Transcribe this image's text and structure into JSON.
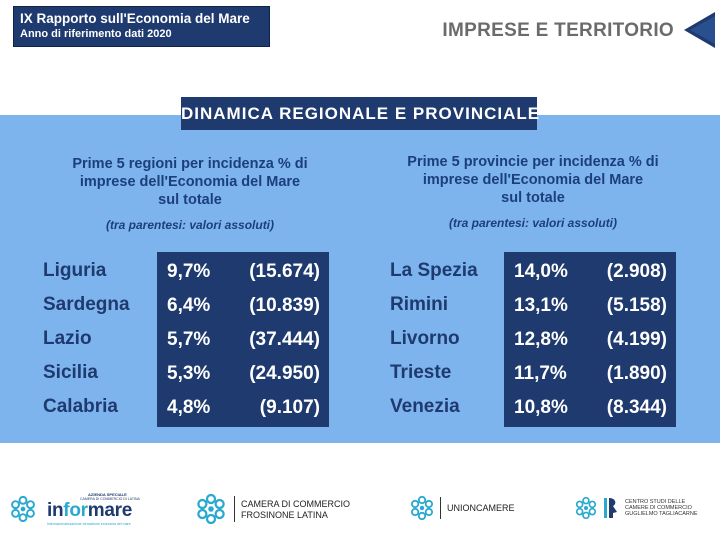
{
  "header": {
    "badge_line1": "IX Rapporto sull'Economia del Mare",
    "badge_line2": "Anno di riferimento dati 2020",
    "section": "IMPRESE E TERRITORIO"
  },
  "band_title": "DINAMICA REGIONALE E PROVINCIALE",
  "regions": {
    "caption_lines": [
      "Prime 5 regioni per incidenza % di",
      "imprese dell'Economia del  Mare",
      "sul totale"
    ],
    "note": "(tra parentesi: valori assoluti)",
    "rows": [
      {
        "name": "Liguria",
        "pct": "9,7%",
        "abs": "(15.674)"
      },
      {
        "name": "Sardegna",
        "pct": "6,4%",
        "abs": "(10.839)"
      },
      {
        "name": "Lazio",
        "pct": "5,7%",
        "abs": "(37.444)"
      },
      {
        "name": "Sicilia",
        "pct": "5,3%",
        "abs": "(24.950)"
      },
      {
        "name": "Calabria",
        "pct": "4,8%",
        "abs": "(9.107)"
      }
    ]
  },
  "provinces": {
    "caption_lines": [
      "Prime 5 provincie per incidenza % di",
      "imprese dell'Economia del  Mare",
      "sul totale"
    ],
    "note": "(tra parentesi: valori assoluti)",
    "rows": [
      {
        "name": "La Spezia",
        "pct": "14,0%",
        "abs": "(2.908)"
      },
      {
        "name": "Rimini",
        "pct": "13,1%",
        "abs": "(5.158)"
      },
      {
        "name": "Livorno",
        "pct": "12,8%",
        "abs": "(4.199)"
      },
      {
        "name": "Trieste",
        "pct": "11,7%",
        "abs": "(1.890)"
      },
      {
        "name": "Venezia",
        "pct": "10,8%",
        "abs": "(8.344)"
      }
    ]
  },
  "footer": {
    "informare": {
      "pre": "in",
      "mid": "for",
      "post": "mare",
      "tag_top": "AZIENDA SPECIALE",
      "tag_top2": "CAMERA DI COMMERCIO DI LATINA",
      "tag_bottom": "Internazionalizzazione formazione economia del mare"
    },
    "cciaa": {
      "line1": "CAMERA DI COMMERCIO",
      "line2": "FROSINONE LATINA"
    },
    "unioncamere": "UNIONCAMERE",
    "tagliacarne": {
      "line1": "CENTRO STUDI DELLE",
      "line2": "CAMERE DI COMMERCIO",
      "line3": "GUGLIELMO TAGLIACARNE"
    }
  },
  "colors": {
    "navy": "#1e3a6e",
    "panel_blue": "#7db4ee",
    "caption_blue": "#1c3f7a",
    "logo_teal": "#29a9cf"
  }
}
